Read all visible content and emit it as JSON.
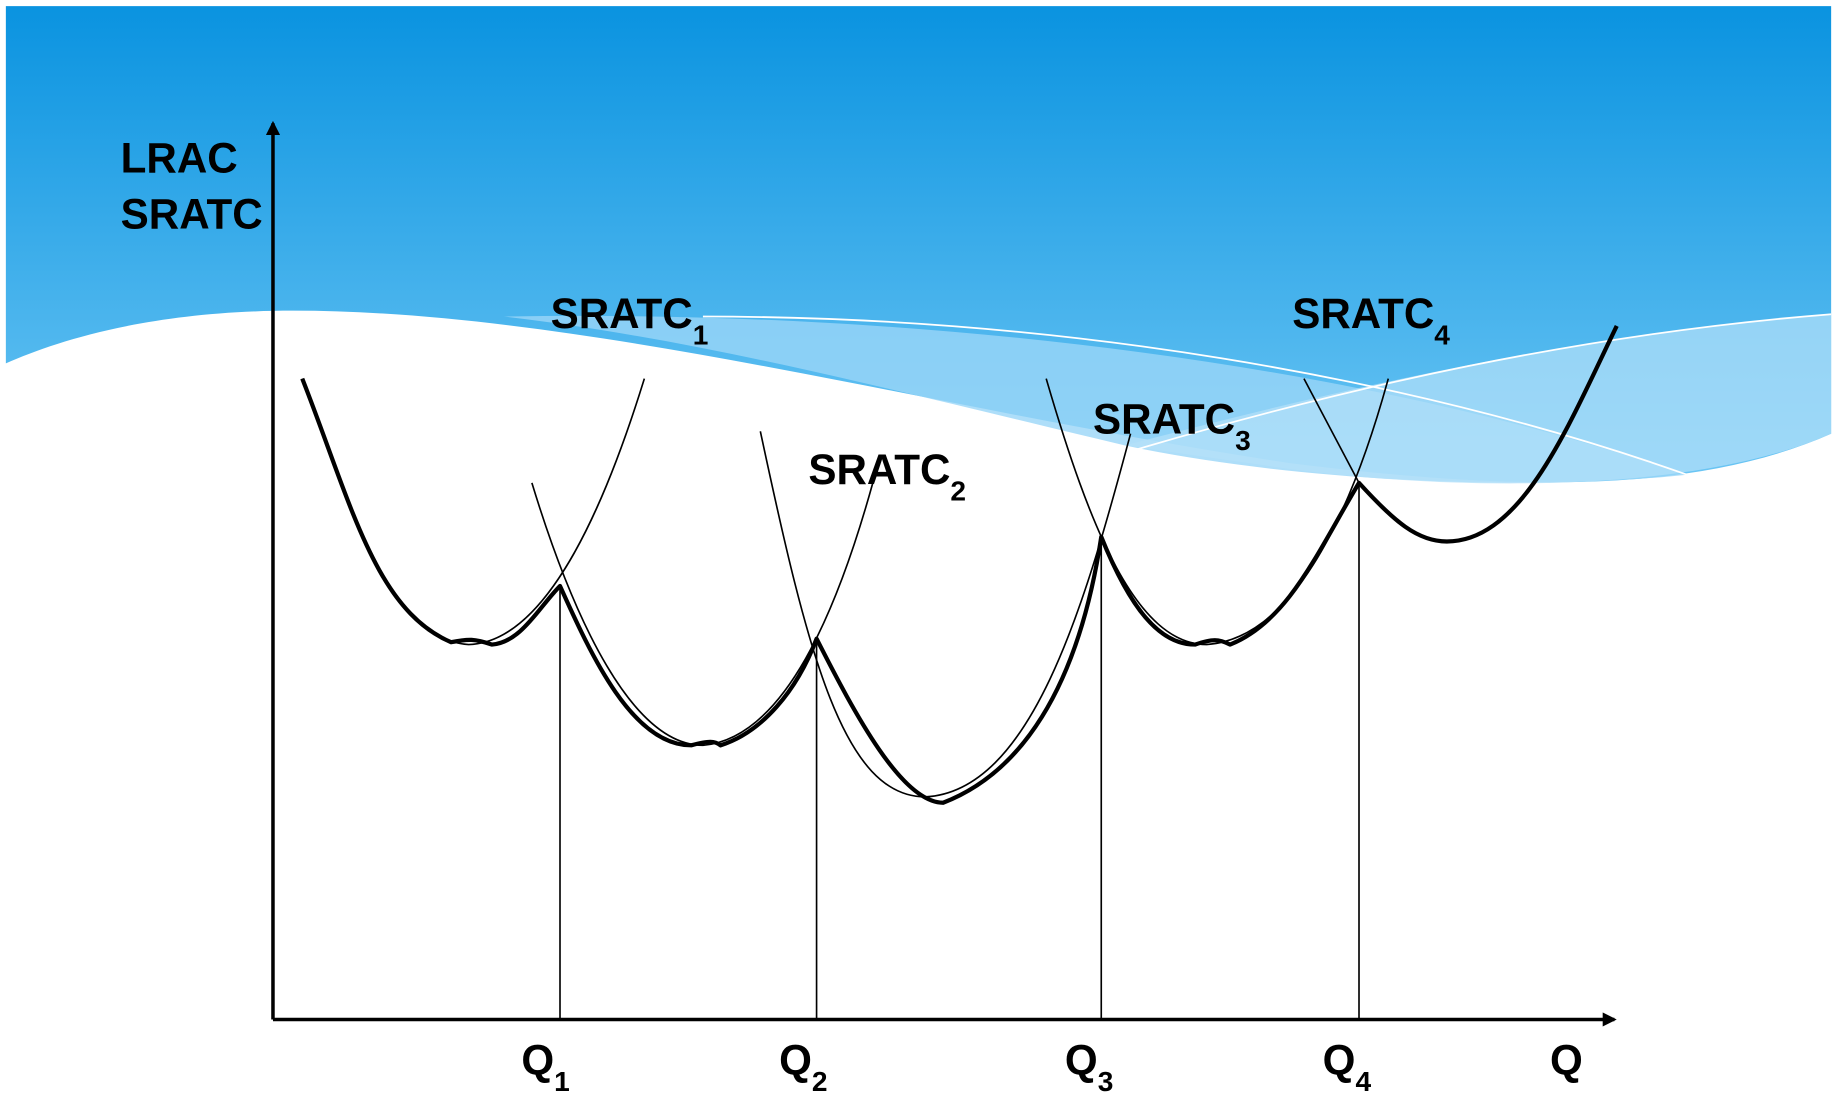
{
  "y_axis_label": [
    "LRAC",
    "SRATC"
  ],
  "x_axis_label": "Q",
  "curve_labels": [
    {
      "text": "SRATC",
      "sub": "1"
    },
    {
      "text": "SRATC",
      "sub": "2"
    },
    {
      "text": "SRATC",
      "sub": "3"
    },
    {
      "text": "SRATC",
      "sub": "4"
    }
  ],
  "quantity_labels": [
    {
      "text": "Q",
      "sub": "1"
    },
    {
      "text": "Q",
      "sub": "2"
    },
    {
      "text": "Q",
      "sub": "3"
    },
    {
      "text": "Q",
      "sub": "4"
    }
  ]
}
